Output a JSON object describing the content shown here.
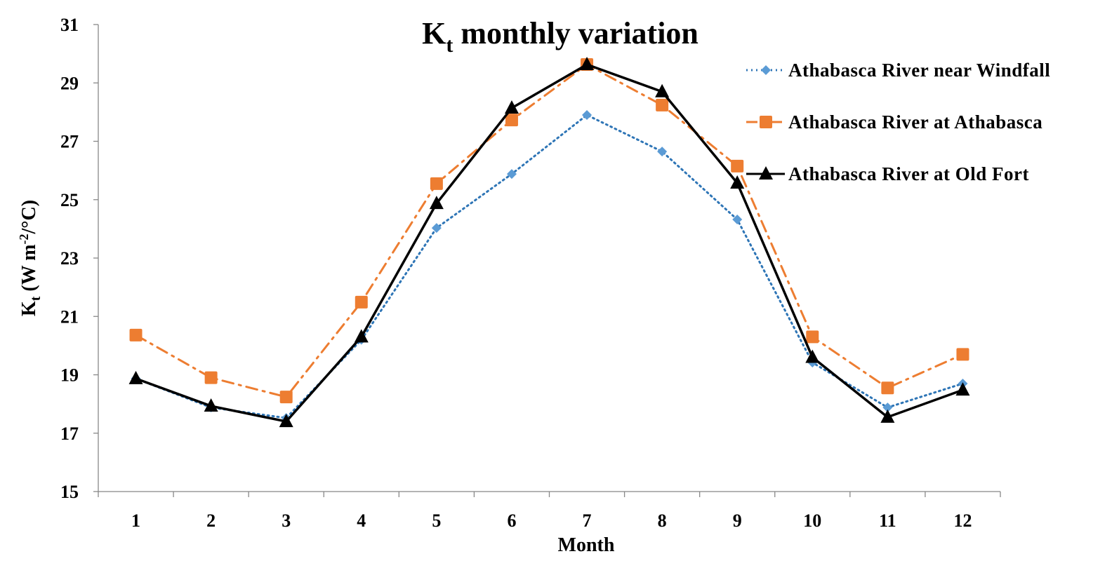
{
  "chart_data": {
    "type": "line",
    "title": "K",
    "title_sub": "t",
    "title_rest": " monthly variation",
    "xlabel": "Month",
    "ylabel_main": "K",
    "ylabel_sub": "t",
    "ylabel_rest": " (W m",
    "ylabel_sup": "-2",
    "ylabel_end": "/°C)",
    "ylim": [
      15,
      31
    ],
    "yticks": [
      15,
      17,
      19,
      21,
      23,
      25,
      27,
      29,
      31
    ],
    "categories": [
      "1",
      "2",
      "3",
      "4",
      "5",
      "6",
      "7",
      "8",
      "9",
      "10",
      "11",
      "12"
    ],
    "legend_position": "top-right",
    "series": [
      {
        "name": "Athabasca River near Windfall",
        "color": "#5B9BD5",
        "marker": "diamond",
        "style": "dotted",
        "values": [
          18.87,
          17.88,
          17.52,
          20.2,
          24.03,
          25.88,
          27.9,
          26.65,
          24.32,
          19.42,
          17.88,
          18.7
        ]
      },
      {
        "name": "Athabasca River at Athabasca",
        "color": "#ED7D31",
        "marker": "square",
        "style": "dashdot",
        "values": [
          20.36,
          18.9,
          18.24,
          21.49,
          25.55,
          27.73,
          29.63,
          28.24,
          26.15,
          20.3,
          18.55,
          19.7
        ]
      },
      {
        "name": "Athabasca River at Old Fort",
        "color": "#000000",
        "marker": "triangle",
        "style": "solid",
        "values": [
          18.87,
          17.93,
          17.4,
          20.3,
          24.87,
          28.14,
          29.63,
          28.7,
          25.57,
          19.6,
          17.55,
          18.48
        ]
      }
    ]
  }
}
